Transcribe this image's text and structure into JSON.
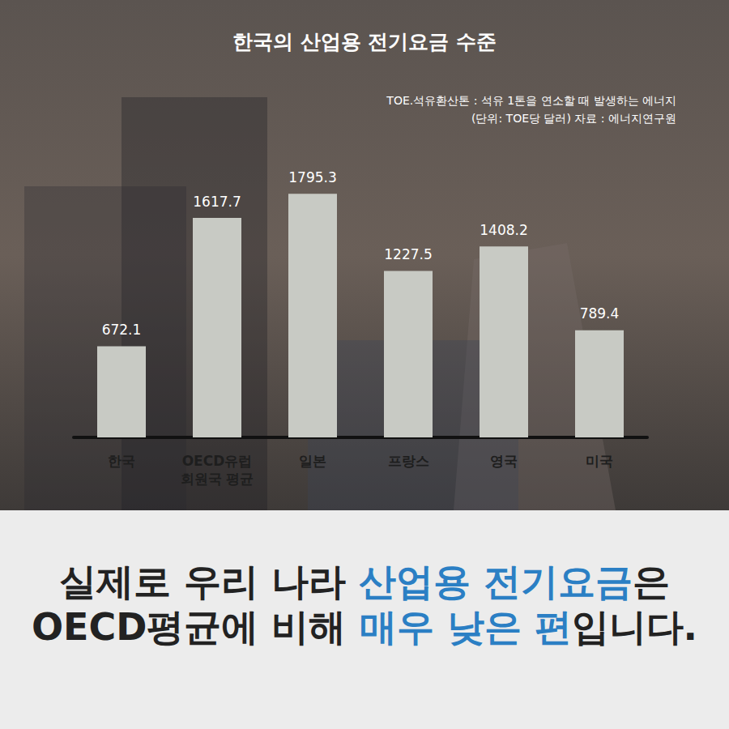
{
  "chart_data": {
    "type": "bar",
    "title": "한국의 산업용 전기요금 수준",
    "notes": [
      "TOE.석유환산톤 : 석유 1톤을 연소할 때 발생하는 에너지",
      "(단위: TOE당 달러) 자료 : 에너지연구원"
    ],
    "categories": [
      "한국",
      "OECD유럽\n회원국 평균",
      "일본",
      "프랑스",
      "영국",
      "미국"
    ],
    "values": [
      672.1,
      1617.7,
      1795.3,
      1227.5,
      1408.2,
      789.4
    ],
    "color": "#c8cac4",
    "ylim": [
      0,
      2000
    ],
    "grid": false,
    "data_labels": true,
    "tick_labels": "x"
  },
  "caption": [
    [
      {
        "text": "실제로 우리 나라 ",
        "highlight": false
      },
      {
        "text": "산업용 전기요금",
        "highlight": true
      },
      {
        "text": "은",
        "highlight": false
      }
    ],
    [
      {
        "text": "OECD평균에 비해 ",
        "highlight": false
      },
      {
        "text": "매우 낮은 편",
        "highlight": true
      },
      {
        "text": "입니다.",
        "highlight": false
      }
    ]
  ]
}
